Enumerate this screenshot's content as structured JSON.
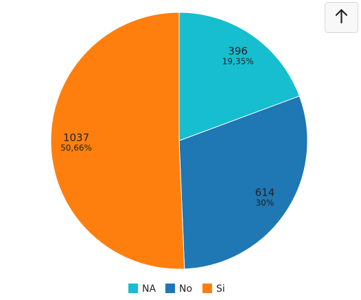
{
  "chart_data": {
    "type": "pie",
    "categories": [
      "NA",
      "No",
      "Si"
    ],
    "values": [
      396,
      614,
      1037
    ],
    "percent_labels": [
      "19,35%",
      "30%",
      "50,66%"
    ],
    "colors": [
      "#17becf",
      "#1f77b4",
      "#ff7f0e"
    ]
  }
}
